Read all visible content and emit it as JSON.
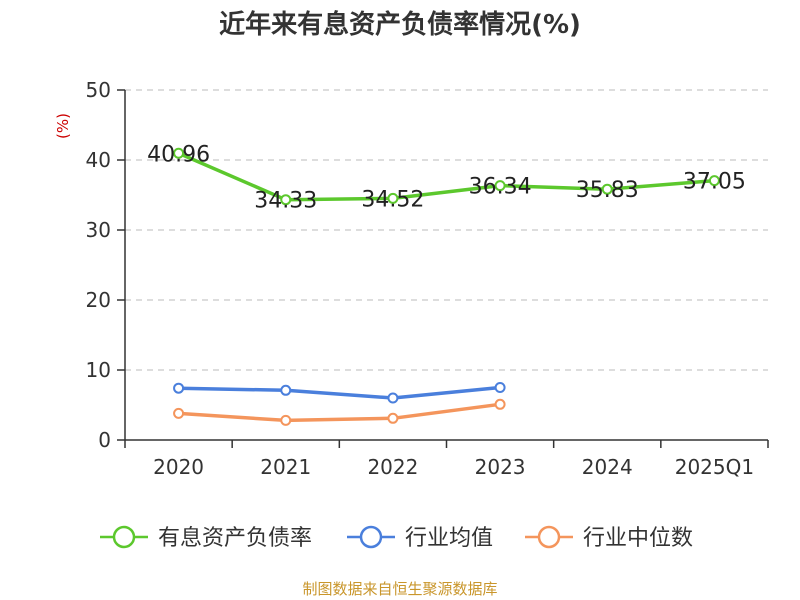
{
  "chart_data": {
    "type": "line",
    "title": "近年来有息资产负债率情况(%)",
    "ylabel": "(%)",
    "xlabel": "",
    "categories": [
      "2020",
      "2021",
      "2022",
      "2023",
      "2024",
      "2025Q1"
    ],
    "ylim": [
      0,
      50
    ],
    "yticks": [
      0,
      10,
      20,
      30,
      40,
      50
    ],
    "grid": true,
    "legend_position": "bottom",
    "series": [
      {
        "name": "有息资产负债率",
        "color": "#5cc82d",
        "values": [
          40.96,
          34.33,
          34.52,
          36.34,
          35.83,
          37.05
        ],
        "show_labels": true
      },
      {
        "name": "行业均值",
        "color": "#4a7fdc",
        "values": [
          7.4,
          7.1,
          6.0,
          7.5,
          null,
          null
        ],
        "show_labels": false
      },
      {
        "name": "行业中位数",
        "color": "#f4955c",
        "values": [
          3.8,
          2.8,
          3.1,
          5.1,
          null,
          null
        ],
        "show_labels": false
      }
    ],
    "data_labels": [
      "40.96",
      "34.33",
      "34.52",
      "36.34",
      "35.83",
      "37.05"
    ],
    "source": "制图数据来自恒生聚源数据库"
  }
}
